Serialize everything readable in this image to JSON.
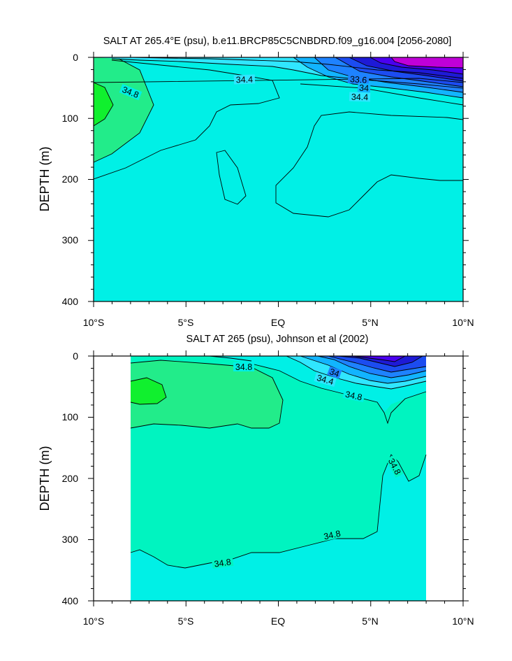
{
  "colors": {
    "c33": "#9a10d8",
    "c33_4": "#4a00f0",
    "c33_6": "#1e1ad6",
    "c33_8": "#1c4cf0",
    "c34": "#1e82ff",
    "c34_2": "#12b4ff",
    "c34_4": "#30e6ff",
    "c34_6": "#00f0e6",
    "c34_8": "#00f4c0",
    "c35": "#22ec8a",
    "c35_2": "#10f02e",
    "magenta": "#c000d8"
  },
  "chart_data": [
    {
      "type": "contour",
      "title": "SALT AT 265.4°E (psu), b.e11.BRCP85C5CNBDRD.f09_g16.004 [2056-2080]",
      "ylabel": "DEPTH (m)",
      "xlabel": "",
      "x_range": [
        -10,
        10
      ],
      "y_range": [
        0,
        400
      ],
      "y_inverted": true,
      "x_tick_labels": [
        "10°S",
        "5°S",
        "EQ",
        "5°N",
        "10°N"
      ],
      "y_tick_labels": [
        "0",
        "100",
        "200",
        "300",
        "400"
      ],
      "contour_labels": [
        "34.8",
        "34.4",
        "33.6",
        "34",
        "34.4"
      ]
    },
    {
      "type": "contour",
      "title": "SALT AT 265 (psu), Johnson et al (2002)",
      "ylabel": "DEPTH (m)",
      "xlabel": "",
      "x_range": [
        -10,
        10
      ],
      "y_range": [
        0,
        400
      ],
      "y_inverted": true,
      "data_x_extent": [
        -8,
        8
      ],
      "x_tick_labels": [
        "10°S",
        "5°S",
        "EQ",
        "5°N",
        "10°N"
      ],
      "y_tick_labels": [
        "0",
        "100",
        "200",
        "300",
        "400"
      ],
      "contour_labels": [
        "34.8",
        "34",
        "34.4",
        "34.8",
        "34.8",
        "34.8",
        "34.8"
      ]
    }
  ]
}
